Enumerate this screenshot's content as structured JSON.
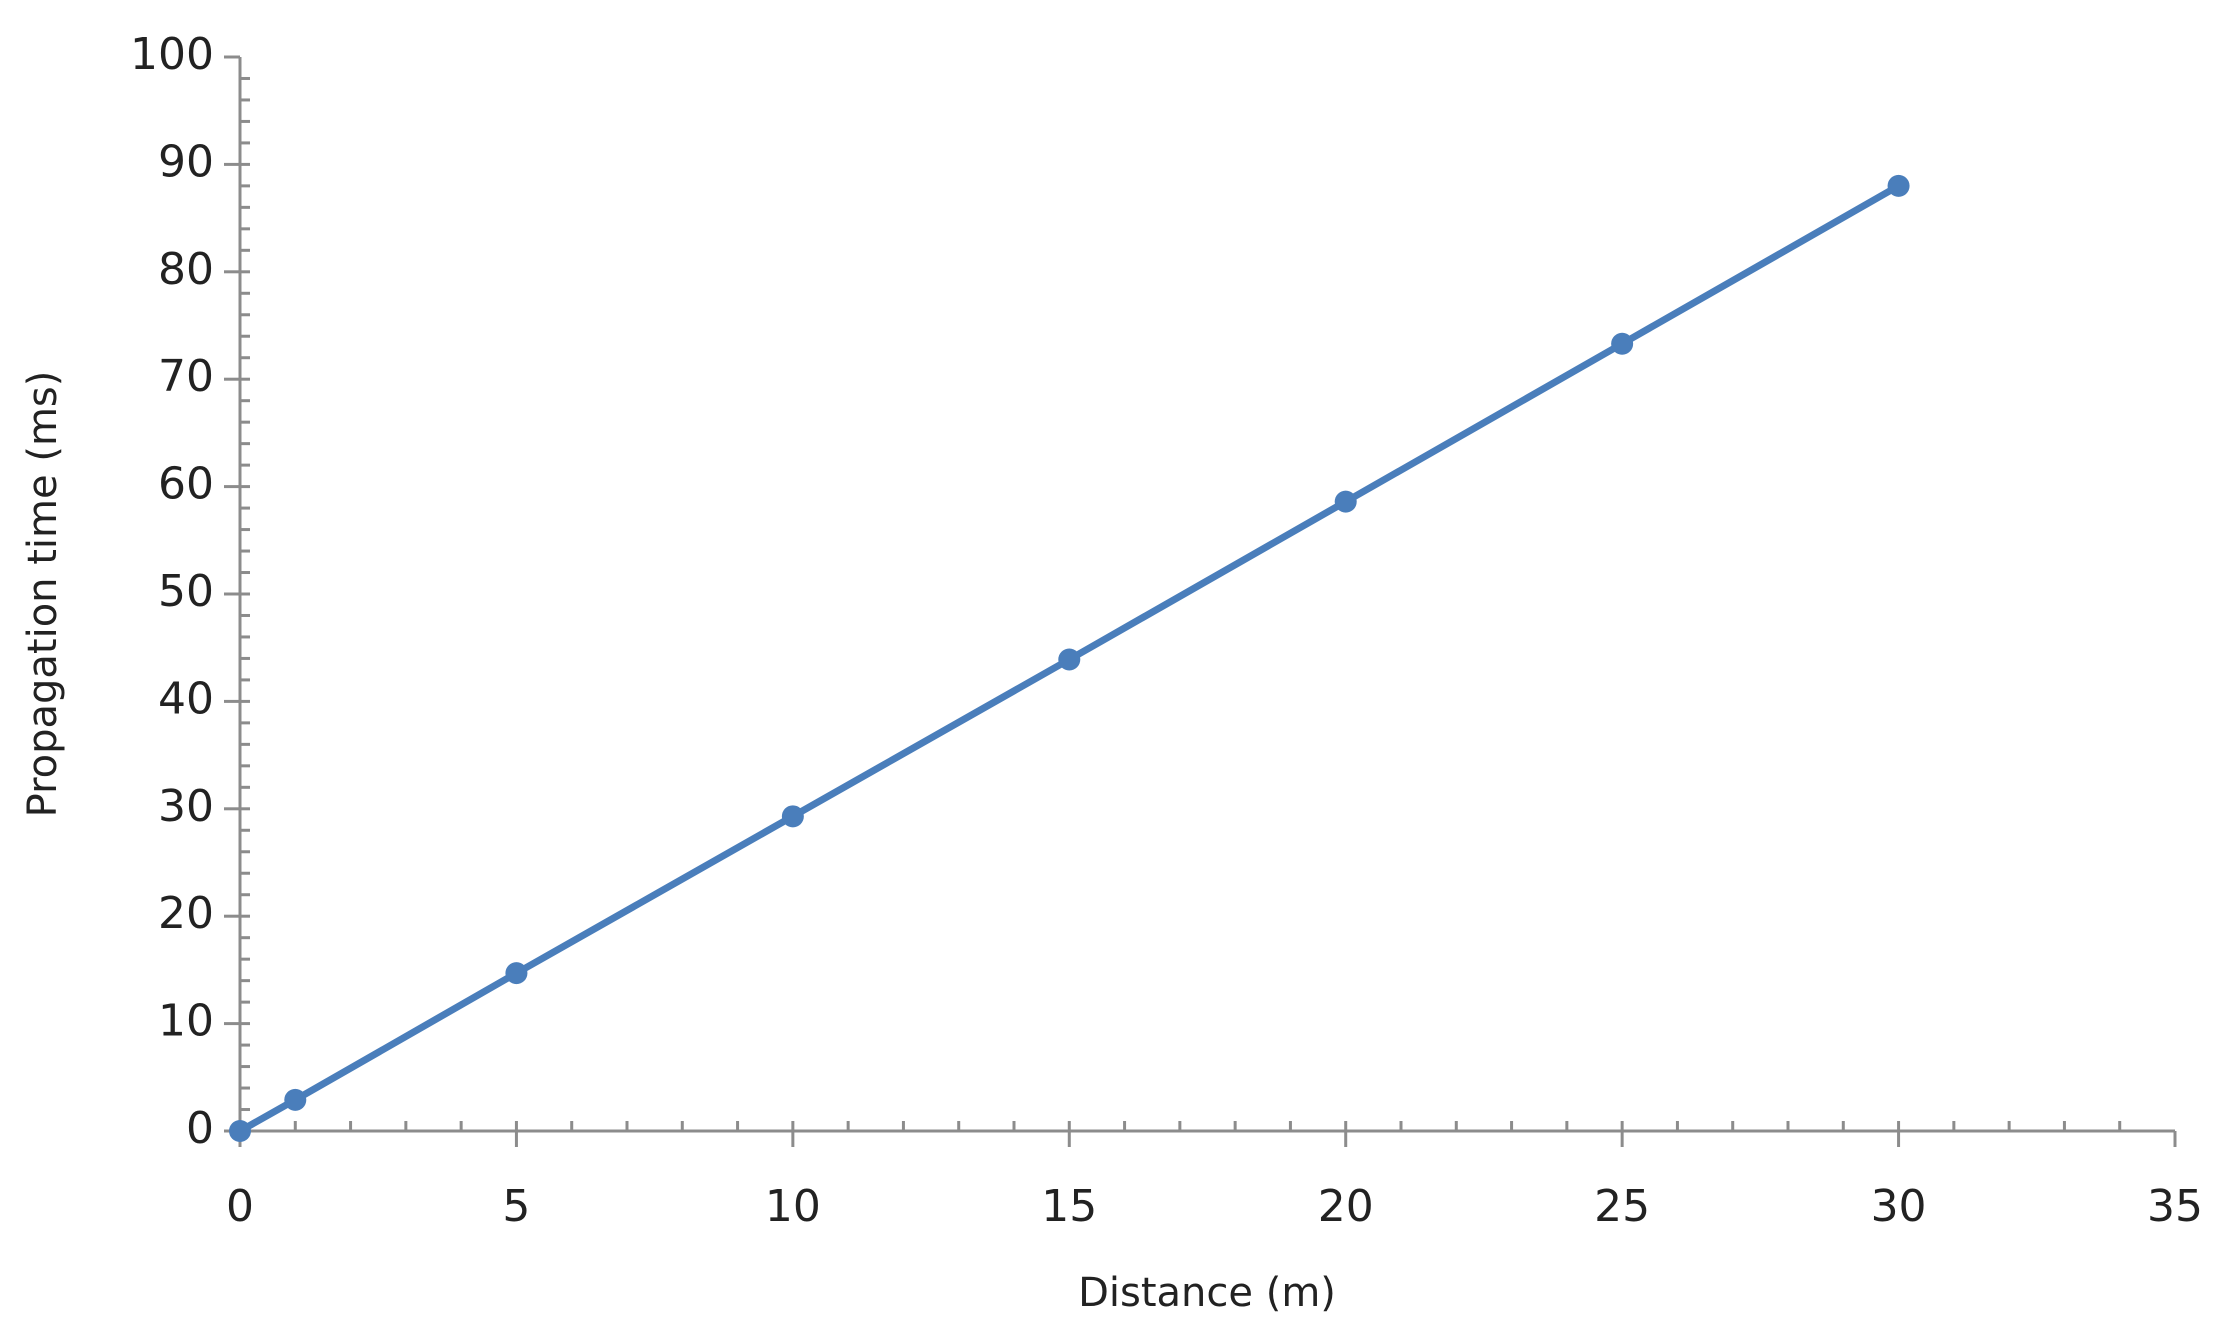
{
  "chart_data": {
    "type": "line",
    "x_label": "Distance (m)",
    "y_label": "Propagation time (ms)",
    "x": [
      0,
      1,
      5,
      10,
      15,
      20,
      25,
      30
    ],
    "series": [
      {
        "color": "#4a7ebb",
        "values": [
          0,
          2.9,
          14.7,
          29.3,
          43.9,
          58.6,
          73.3,
          88.0
        ]
      }
    ],
    "xlim": [
      0,
      35
    ],
    "xticks": [
      0,
      5,
      10,
      15,
      20,
      25,
      30,
      35
    ],
    "ylim": [
      0,
      100
    ],
    "yticks": [
      0,
      10,
      20,
      30,
      40,
      50,
      60,
      70,
      80,
      90,
      100
    ],
    "x_minor_step": 1,
    "y_minor_step": 2,
    "markers": true,
    "grid": false
  }
}
